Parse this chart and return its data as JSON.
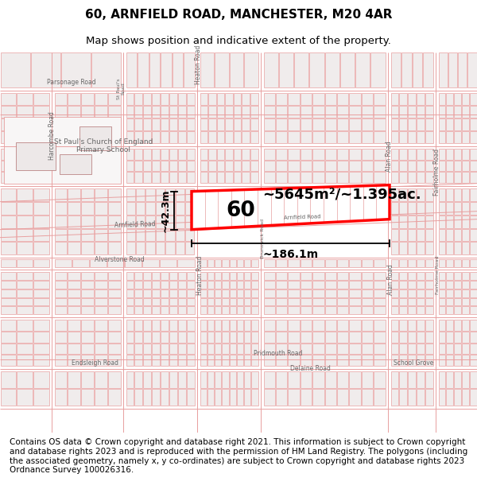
{
  "title": "60, ARNFIELD ROAD, MANCHESTER, M20 4AR",
  "subtitle": "Map shows position and indicative extent of the property.",
  "footer_text": "Contains OS data © Crown copyright and database right 2021. This information is subject to Crown copyright and database rights 2023 and is reproduced with the permission of HM Land Registry. The polygons (including the associated geometry, namely x, y co-ordinates) are subject to Crown copyright and database rights 2023 Ordnance Survey 100026316.",
  "area_label": "~5645m²/~1.395ac.",
  "plot_number": "60",
  "dim_width": "~186.1m",
  "dim_height": "~42.3m",
  "road_color": "#e8a0a0",
  "building_edge": "#d08080",
  "building_face": "#f0eded",
  "highlight_color": "#ff0000",
  "bg_color": "#ffffff",
  "title_fontsize": 11,
  "subtitle_fontsize": 9.5,
  "footer_fontsize": 7.5
}
